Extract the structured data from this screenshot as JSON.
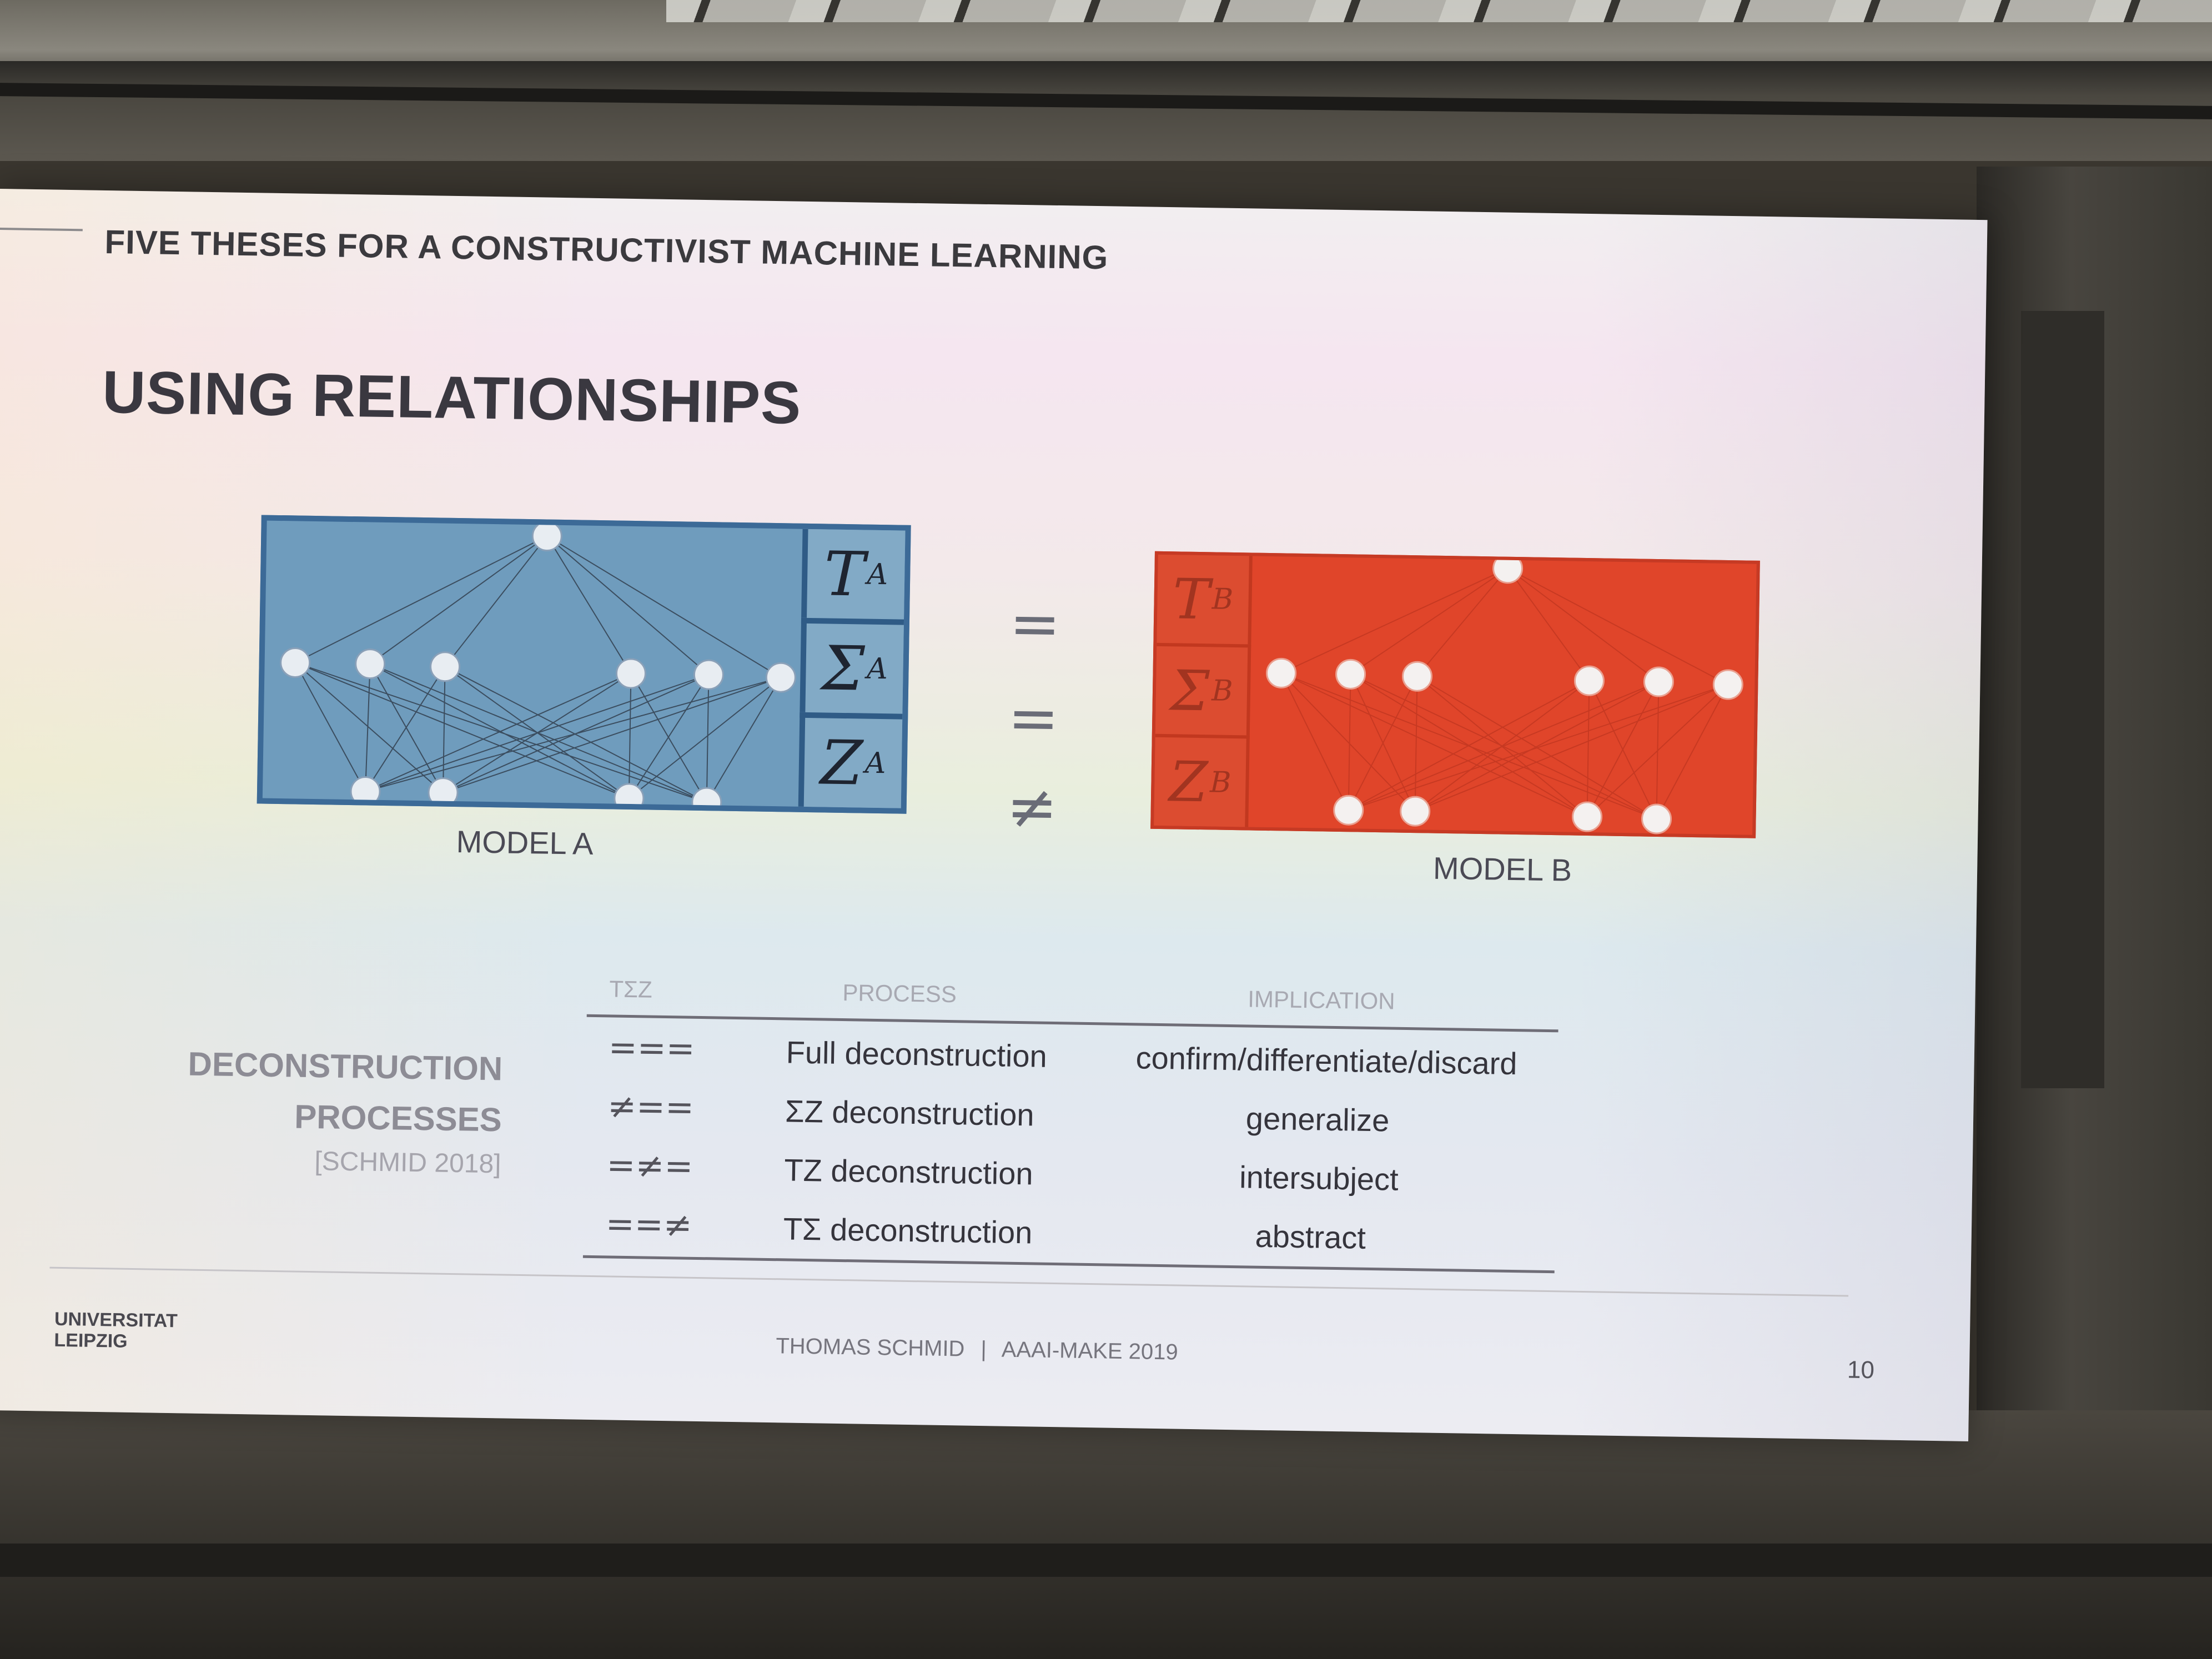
{
  "slide": {
    "header": "FIVE THESES FOR A CONSTRUCTIVIST MACHINE LEARNING",
    "title": "USING RELATIONSHIPS",
    "model_a": {
      "label": "MODEL A",
      "params": [
        {
          "symbol": "T",
          "subscript": "A"
        },
        {
          "symbol": "Σ",
          "subscript": "A"
        },
        {
          "symbol": "Z",
          "subscript": "A"
        }
      ]
    },
    "model_b": {
      "label": "MODEL B",
      "params": [
        {
          "symbol": "T",
          "subscript": "B"
        },
        {
          "symbol": "Σ",
          "subscript": "B"
        },
        {
          "symbol": "Z",
          "subscript": "B"
        }
      ]
    },
    "relations": [
      "=",
      "=",
      "≠"
    ],
    "deconstruction": {
      "label_line1": "DECONSTRUCTION",
      "label_line2": "PROCESSES",
      "citation": "[SCHMID 2018]",
      "columns": [
        "TΣZ",
        "PROCESS",
        "IMPLICATION"
      ],
      "rows": [
        {
          "symbol": "===",
          "process": "Full deconstruction",
          "implication": "confirm/differentiate/discard"
        },
        {
          "symbol": "≠==",
          "process": "ΣZ deconstruction",
          "implication": "generalize"
        },
        {
          "symbol": "=≠=",
          "process": "TZ deconstruction",
          "implication": "intersubject"
        },
        {
          "symbol": "==≠",
          "process": "TΣ deconstruction",
          "implication": "abstract"
        }
      ]
    },
    "footer": {
      "logo_line1": "UNIVERSITAT",
      "logo_line2": "LEIPZIG",
      "author": "THOMAS SCHMID",
      "separator": "|",
      "event": "AAAI-MAKE 2019",
      "page": "10"
    }
  },
  "colors": {
    "model_a_fill": "#6f9cbd",
    "model_a_border": "#3c6a97",
    "model_b_fill": "#e0452a"
  }
}
